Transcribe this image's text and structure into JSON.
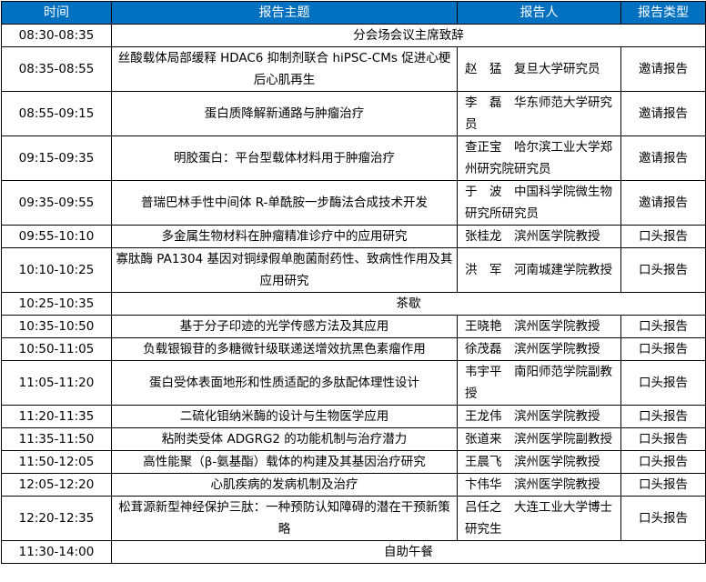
{
  "header": {
    "time": "时间",
    "topic": "报告主题",
    "speaker": "报告人",
    "type": "报告类型"
  },
  "colors": {
    "header_bg": "#0070c0",
    "header_text": "#ffffff",
    "border": "#000000"
  },
  "rows": [
    {
      "time": "08:30-08:35",
      "span": "分会场会议主席致辞"
    },
    {
      "time": "08:35-08:55",
      "topic": "丝酸载体局部缓释 HDAC6 抑制剂联合 hiPSC-CMs 促进心梗后心肌再生",
      "speaker": "赵　猛　复旦大学研究员",
      "type": "邀请报告"
    },
    {
      "time": "08:55-09:15",
      "topic": "蛋白质降解新通路与肿瘤治疗",
      "speaker": "李　磊　华东师范大学研究员",
      "type": "邀请报告"
    },
    {
      "time": "09:15-09:35",
      "topic": "明胶蛋白：平台型载体材料用于肿瘤治疗",
      "speaker": "查正宝　哈尔滨工业大学郑州研究院研究员",
      "type": "邀请报告"
    },
    {
      "time": "09:35-09:55",
      "topic": "普瑞巴林手性中间体 R-单酰胺一步酶法合成技术开发",
      "speaker": "于　波　中国科学院微生物研究所研究员",
      "type": "邀请报告"
    },
    {
      "time": "09:55-10:10",
      "topic": "多金属生物材料在肿瘤精准诊疗中的应用研究",
      "speaker": "张桂龙　滨州医学院教授",
      "type": "口头报告"
    },
    {
      "time": "10:10-10:25",
      "topic": "寡肽酶 PA1304 基因对铜绿假单胞菌耐药性、致病性作用及其应用研究",
      "speaker": "洪　军　河南城建学院教授",
      "type": "口头报告"
    },
    {
      "time": "10:25-10:35",
      "span": "茶歇"
    },
    {
      "time": "10:35-10:50",
      "topic": "基于分子印迹的光学传感方法及其应用",
      "speaker": "王晓艳　滨州医学院教授",
      "type": "口头报告"
    },
    {
      "time": "10:50-11:05",
      "topic": "负载银锻苷的多糖微针级联递送增效抗黑色素瘤作用",
      "speaker": "徐茂磊　滨州医学院教授",
      "type": "口头报告"
    },
    {
      "time": "11:05-11:20",
      "topic": "蛋白受体表面地形和性质适配的多肽配体理性设计",
      "speaker": "韦宇平　南阳师范学院副教授",
      "type": "口头报告"
    },
    {
      "time": "11:20-11:35",
      "topic": "二硫化钼纳米酶的设计与生物医学应用",
      "speaker": "王龙伟　滨州医学院教授",
      "type": "口头报告"
    },
    {
      "time": "11:35-11:50",
      "topic": "粘附类受体 ADGRG2 的功能机制与治疗潜力",
      "speaker": "张道来　滨州医学院副教授",
      "type": "口头报告"
    },
    {
      "time": "11:50-12:05",
      "topic": "高性能聚（β-氨基酯）载体的构建及其基因治疗研究",
      "speaker": "王晨飞　滨州医学院教授",
      "type": "口头报告"
    },
    {
      "time": "12:05-12:20",
      "topic": "心肌疾病的发病机制及治疗",
      "speaker": "卞伟华　滨州医学院教授",
      "type": "口头报告"
    },
    {
      "time": "12:20-12:35",
      "topic": "松茸源新型神经保护三肽：一种预防认知障碍的潜在干预新策略",
      "speaker": "吕任之　大连工业大学博士研究生",
      "type": "口头报告"
    },
    {
      "time": "11:30-14:00",
      "span": "自助午餐"
    }
  ]
}
